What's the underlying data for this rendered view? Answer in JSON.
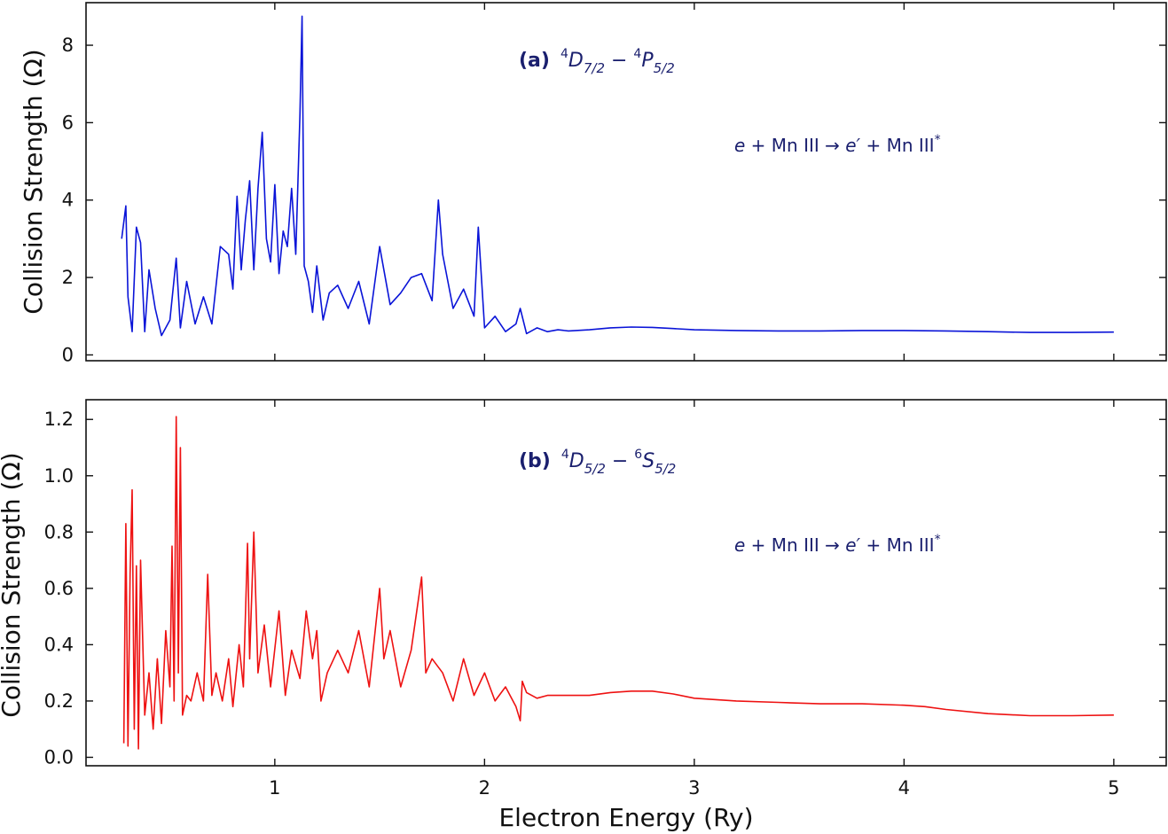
{
  "chart_data": [
    {
      "type": "line",
      "panel_tag": "(a)",
      "title": "⁴D₇/₂ − ⁴P₅/₂",
      "title_parts": {
        "upper_term": "D",
        "upper_mult": "4",
        "upper_j": "7/2",
        "lower_term": "P",
        "lower_mult": "4",
        "lower_j": "5/2"
      },
      "annotation": "e + Mn III → e′ + Mn III*",
      "annotation_parts": {
        "e": "e",
        "plus1": " + Mn III → ",
        "eprime": "e′",
        "plus2": " + Mn III",
        "star": "*"
      },
      "ylabel": "Collision Strength (Ω)",
      "xlabel": "",
      "xlim": [
        0.1,
        5.25
      ],
      "ylim": [
        -0.15,
        9.1
      ],
      "xticks": [
        1,
        2,
        3,
        4,
        5
      ],
      "yticks": [
        0,
        2,
        4,
        6,
        8
      ],
      "ytick_labels": [
        "0",
        "2",
        "4",
        "6",
        "8"
      ],
      "color": "#0a14d8",
      "x": [
        0.27,
        0.29,
        0.3,
        0.32,
        0.34,
        0.36,
        0.38,
        0.4,
        0.43,
        0.46,
        0.5,
        0.53,
        0.55,
        0.58,
        0.62,
        0.66,
        0.7,
        0.74,
        0.78,
        0.8,
        0.82,
        0.84,
        0.86,
        0.88,
        0.9,
        0.92,
        0.94,
        0.96,
        0.98,
        1.0,
        1.02,
        1.04,
        1.06,
        1.08,
        1.1,
        1.12,
        1.13,
        1.14,
        1.16,
        1.18,
        1.2,
        1.23,
        1.26,
        1.3,
        1.35,
        1.4,
        1.45,
        1.5,
        1.55,
        1.6,
        1.65,
        1.7,
        1.75,
        1.78,
        1.8,
        1.85,
        1.9,
        1.95,
        1.97,
        2.0,
        2.05,
        2.1,
        2.15,
        2.17,
        2.2,
        2.25,
        2.3,
        2.35,
        2.4,
        2.5,
        2.6,
        2.7,
        2.8,
        2.9,
        3.0,
        3.2,
        3.4,
        3.6,
        3.8,
        4.0,
        4.2,
        4.4,
        4.6,
        4.8,
        5.0
      ],
      "y": [
        3.0,
        3.85,
        1.5,
        0.6,
        3.3,
        2.9,
        0.6,
        2.2,
        1.2,
        0.5,
        0.9,
        2.5,
        0.7,
        1.9,
        0.8,
        1.5,
        0.8,
        2.8,
        2.6,
        1.7,
        4.1,
        2.2,
        3.5,
        4.5,
        2.2,
        4.3,
        5.75,
        3.0,
        2.4,
        4.4,
        2.1,
        3.2,
        2.8,
        4.3,
        2.6,
        6.2,
        8.75,
        2.3,
        1.9,
        1.1,
        2.3,
        0.9,
        1.6,
        1.8,
        1.2,
        1.9,
        0.8,
        2.8,
        1.3,
        1.6,
        2.0,
        2.1,
        1.4,
        4.0,
        2.6,
        1.2,
        1.7,
        1.0,
        3.3,
        0.7,
        1.0,
        0.6,
        0.8,
        1.2,
        0.55,
        0.7,
        0.6,
        0.65,
        0.62,
        0.65,
        0.7,
        0.72,
        0.71,
        0.68,
        0.65,
        0.63,
        0.62,
        0.62,
        0.63,
        0.63,
        0.62,
        0.6,
        0.58,
        0.58,
        0.59
      ]
    },
    {
      "type": "line",
      "panel_tag": "(b)",
      "title": "⁴D₅/₂ − ⁶S₅/₂",
      "title_parts": {
        "upper_term": "D",
        "upper_mult": "4",
        "upper_j": "5/2",
        "lower_term": "S",
        "lower_mult": "6",
        "lower_j": "5/2"
      },
      "annotation": "e + Mn III → e′ + Mn III*",
      "annotation_parts": {
        "e": "e",
        "plus1": " + Mn III → ",
        "eprime": "e′",
        "plus2": " + Mn III",
        "star": "*"
      },
      "ylabel": "Collision Strength (Ω)",
      "xlabel": "Electron Energy (Ry)",
      "xlim": [
        0.1,
        5.25
      ],
      "ylim": [
        -0.03,
        1.27
      ],
      "xticks": [
        1,
        2,
        3,
        4,
        5
      ],
      "xtick_labels": [
        "1",
        "2",
        "3",
        "4",
        "5"
      ],
      "yticks": [
        0.0,
        0.2,
        0.4,
        0.6,
        0.8,
        1.0,
        1.2
      ],
      "ytick_labels": [
        "0.0",
        "0.2",
        "0.4",
        "0.6",
        "0.8",
        "1.0",
        "1.2"
      ],
      "color": "#ee1111",
      "x": [
        0.28,
        0.29,
        0.3,
        0.31,
        0.32,
        0.33,
        0.34,
        0.35,
        0.36,
        0.38,
        0.4,
        0.42,
        0.44,
        0.46,
        0.48,
        0.5,
        0.51,
        0.52,
        0.53,
        0.54,
        0.55,
        0.56,
        0.58,
        0.6,
        0.63,
        0.66,
        0.68,
        0.7,
        0.72,
        0.75,
        0.78,
        0.8,
        0.83,
        0.85,
        0.87,
        0.88,
        0.9,
        0.92,
        0.95,
        0.98,
        1.02,
        1.05,
        1.08,
        1.12,
        1.15,
        1.18,
        1.2,
        1.22,
        1.25,
        1.3,
        1.35,
        1.4,
        1.45,
        1.5,
        1.52,
        1.55,
        1.6,
        1.65,
        1.7,
        1.72,
        1.75,
        1.8,
        1.85,
        1.9,
        1.95,
        2.0,
        2.05,
        2.1,
        2.15,
        2.17,
        2.18,
        2.2,
        2.25,
        2.3,
        2.4,
        2.5,
        2.6,
        2.7,
        2.8,
        2.9,
        3.0,
        3.2,
        3.4,
        3.6,
        3.8,
        4.0,
        4.1,
        4.2,
        4.4,
        4.6,
        4.8,
        5.0
      ],
      "y": [
        0.05,
        0.83,
        0.04,
        0.65,
        0.95,
        0.1,
        0.68,
        0.03,
        0.7,
        0.15,
        0.3,
        0.1,
        0.35,
        0.12,
        0.45,
        0.25,
        0.75,
        0.2,
        1.21,
        0.3,
        1.1,
        0.15,
        0.22,
        0.2,
        0.3,
        0.2,
        0.65,
        0.22,
        0.3,
        0.2,
        0.35,
        0.18,
        0.4,
        0.25,
        0.76,
        0.35,
        0.8,
        0.3,
        0.47,
        0.25,
        0.52,
        0.22,
        0.38,
        0.28,
        0.52,
        0.35,
        0.45,
        0.2,
        0.3,
        0.38,
        0.3,
        0.45,
        0.25,
        0.6,
        0.35,
        0.45,
        0.25,
        0.38,
        0.64,
        0.3,
        0.35,
        0.3,
        0.2,
        0.35,
        0.22,
        0.3,
        0.2,
        0.25,
        0.18,
        0.13,
        0.27,
        0.23,
        0.21,
        0.22,
        0.22,
        0.22,
        0.23,
        0.235,
        0.235,
        0.225,
        0.21,
        0.2,
        0.195,
        0.19,
        0.19,
        0.185,
        0.18,
        0.17,
        0.155,
        0.148,
        0.148,
        0.15
      ]
    }
  ]
}
